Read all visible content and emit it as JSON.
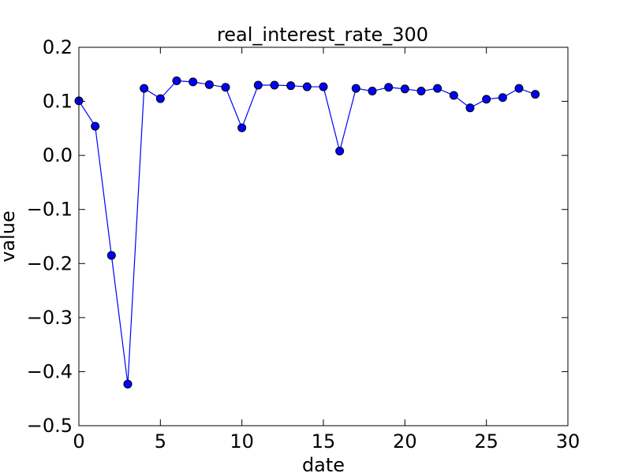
{
  "chart_data": {
    "type": "line",
    "title": "real_interest_rate_300",
    "xlabel": "date",
    "ylabel": "value",
    "xlim": [
      0,
      30
    ],
    "ylim": [
      -0.5,
      0.2
    ],
    "xticks": [
      0,
      5,
      10,
      15,
      20,
      25,
      30
    ],
    "xtick_labels": [
      "0",
      "5",
      "10",
      "15",
      "20",
      "25",
      "30"
    ],
    "yticks": [
      -0.5,
      -0.4,
      -0.3,
      -0.2,
      -0.1,
      0.0,
      0.1,
      0.2
    ],
    "ytick_labels": [
      "−0.5",
      "−0.4",
      "−0.3",
      "−0.2",
      "−0.1",
      "0.0",
      "0.1",
      "0.2"
    ],
    "grid": false,
    "series": [
      {
        "color": "#0000ff",
        "marker": "circle",
        "x": [
          0,
          1,
          2,
          3,
          4,
          5,
          6,
          7,
          8,
          9,
          10,
          11,
          12,
          13,
          14,
          15,
          16,
          17,
          18,
          19,
          20,
          21,
          22,
          23,
          24,
          25,
          26,
          27,
          28
        ],
        "y": [
          0.101,
          0.054,
          -0.185,
          -0.423,
          0.124,
          0.105,
          0.138,
          0.136,
          0.131,
          0.126,
          0.051,
          0.13,
          0.13,
          0.129,
          0.127,
          0.127,
          0.008,
          0.124,
          0.119,
          0.126,
          0.123,
          0.119,
          0.124,
          0.111,
          0.088,
          0.104,
          0.107,
          0.124,
          0.113
        ]
      }
    ]
  }
}
